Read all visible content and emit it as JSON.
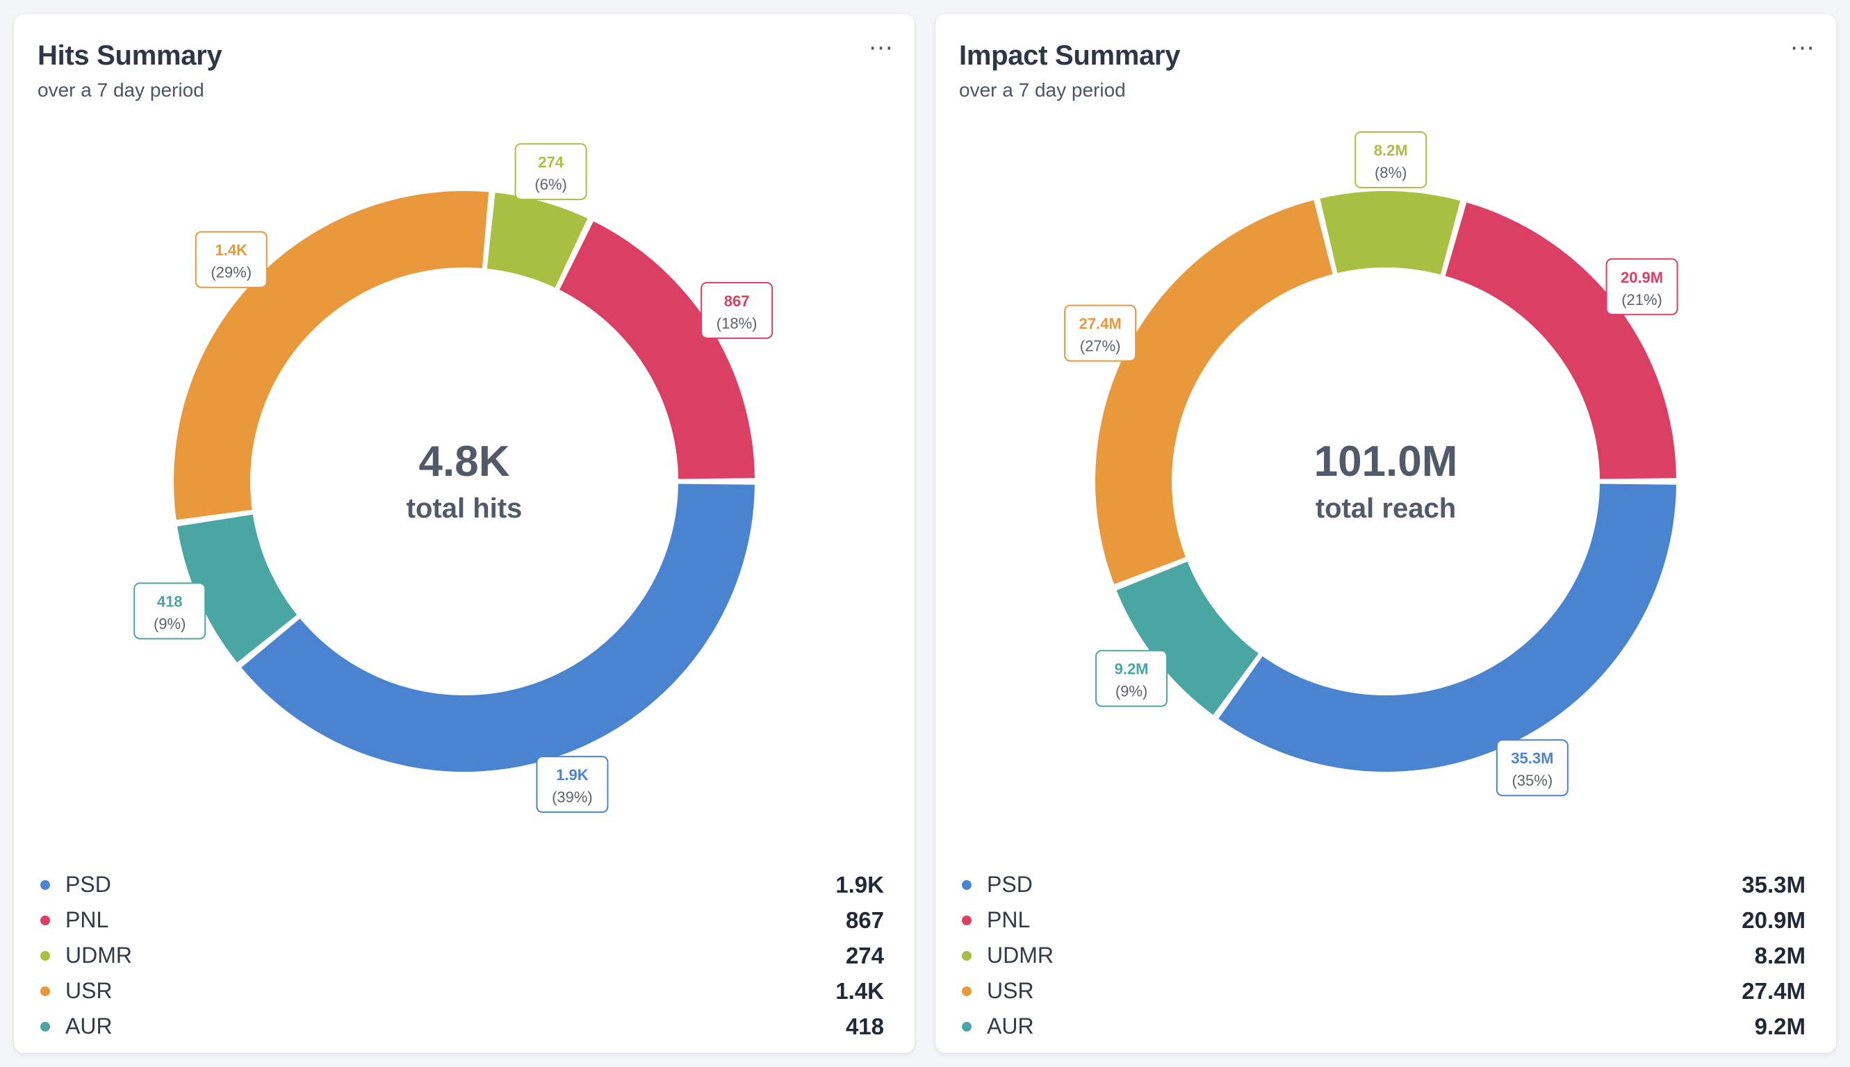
{
  "colors": {
    "PSD": "#4a84d1",
    "PNL": "#db3f63",
    "UDMR": "#a9bf41",
    "USR": "#e9993c",
    "AUR": "#4aa6a2"
  },
  "menu_icon": "more-horizontal-icon",
  "menu_label": "···",
  "cards": [
    {
      "title": "Hits Summary",
      "subtitle": "over a 7 day period",
      "center_value": "4.8K",
      "center_caption": "total hits",
      "legend": [
        {
          "name": "PSD",
          "value": "1.9K"
        },
        {
          "name": "PNL",
          "value": "867"
        },
        {
          "name": "UDMR",
          "value": "274"
        },
        {
          "name": "USR",
          "value": "1.4K"
        },
        {
          "name": "AUR",
          "value": "418"
        }
      ]
    },
    {
      "title": "Impact Summary",
      "subtitle": "over a 7 day period",
      "center_value": "101.0M",
      "center_caption": "total reach",
      "legend": [
        {
          "name": "PSD",
          "value": "35.3M"
        },
        {
          "name": "PNL",
          "value": "20.9M"
        },
        {
          "name": "UDMR",
          "value": "8.2M"
        },
        {
          "name": "USR",
          "value": "27.4M"
        },
        {
          "name": "AUR",
          "value": "9.2M"
        }
      ]
    }
  ],
  "chart_data": [
    {
      "type": "pie",
      "title": "Hits Summary",
      "subtitle": "over a 7 day period",
      "donut": true,
      "total_label": "4.8K",
      "total_caption": "total hits",
      "legend_position": "bottom",
      "slices": [
        {
          "name": "PSD",
          "value": 1900,
          "label": "1.9K",
          "percent": 39,
          "percent_label": "(39%)"
        },
        {
          "name": "AUR",
          "value": 418,
          "label": "418",
          "percent": 9,
          "percent_label": "(9%)"
        },
        {
          "name": "USR",
          "value": 1400,
          "label": "1.4K",
          "percent": 29,
          "percent_label": "(29%)"
        },
        {
          "name": "UDMR",
          "value": 274,
          "label": "274",
          "percent": 6,
          "percent_label": "(6%)"
        },
        {
          "name": "PNL",
          "value": 867,
          "label": "867",
          "percent": 18,
          "percent_label": "(18%)"
        }
      ]
    },
    {
      "type": "pie",
      "title": "Impact Summary",
      "subtitle": "over a 7 day period",
      "donut": true,
      "total_label": "101.0M",
      "total_caption": "total reach",
      "legend_position": "bottom",
      "slices": [
        {
          "name": "PSD",
          "value": 35.3,
          "label": "35.3M",
          "percent": 35,
          "percent_label": "(35%)"
        },
        {
          "name": "AUR",
          "value": 9.2,
          "label": "9.2M",
          "percent": 9,
          "percent_label": "(9%)"
        },
        {
          "name": "USR",
          "value": 27.4,
          "label": "27.4M",
          "percent": 27,
          "percent_label": "(27%)"
        },
        {
          "name": "UDMR",
          "value": 8.2,
          "label": "8.2M",
          "percent": 8,
          "percent_label": "(8%)"
        },
        {
          "name": "PNL",
          "value": 20.9,
          "label": "20.9M",
          "percent": 21,
          "percent_label": "(21%)"
        }
      ]
    }
  ]
}
